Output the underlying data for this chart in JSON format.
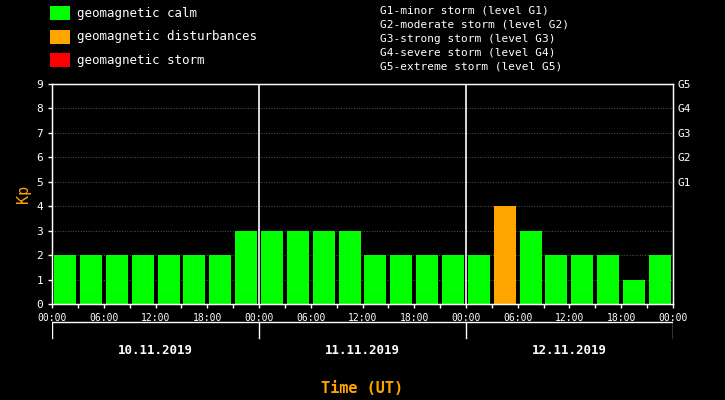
{
  "bg_color": "#000000",
  "plot_bg_color": "#000000",
  "bar_values": [
    2,
    2,
    2,
    2,
    2,
    2,
    2,
    3,
    3,
    3,
    3,
    3,
    2,
    2,
    2,
    2,
    2,
    4,
    3,
    2,
    2,
    2,
    1,
    2
  ],
  "bar_colors": [
    "#00ff00",
    "#00ff00",
    "#00ff00",
    "#00ff00",
    "#00ff00",
    "#00ff00",
    "#00ff00",
    "#00ff00",
    "#00ff00",
    "#00ff00",
    "#00ff00",
    "#00ff00",
    "#00ff00",
    "#00ff00",
    "#00ff00",
    "#00ff00",
    "#00ff00",
    "#ffa500",
    "#00ff00",
    "#00ff00",
    "#00ff00",
    "#00ff00",
    "#00ff00",
    "#00ff00"
  ],
  "ylim": [
    0,
    9
  ],
  "yticks": [
    0,
    1,
    2,
    3,
    4,
    5,
    6,
    7,
    8,
    9
  ],
  "ylabel": "Kp",
  "ylabel_color": "#ffa500",
  "xlabel": "Time (UT)",
  "xlabel_color": "#ffa500",
  "tick_color": "#ffffff",
  "spine_color": "#ffffff",
  "day_labels": [
    "10.11.2019",
    "11.11.2019",
    "12.11.2019"
  ],
  "day_divider_bars": [
    8,
    16
  ],
  "right_labels": [
    "G5",
    "G4",
    "G3",
    "G2",
    "G1"
  ],
  "right_label_yticks": [
    9,
    8,
    7,
    6,
    5
  ],
  "right_label_color": "#ffffff",
  "legend_items": [
    {
      "label": "geomagnetic calm",
      "color": "#00ff00"
    },
    {
      "label": "geomagnetic disturbances",
      "color": "#ffa500"
    },
    {
      "label": "geomagnetic storm",
      "color": "#ff0000"
    }
  ],
  "legend_text_color": "#ffffff",
  "g_labels_text": [
    "G1-minor storm (level G1)",
    "G2-moderate storm (level G2)",
    "G3-strong storm (level G3)",
    "G4-severe storm (level G4)",
    "G5-extreme storm (level G5)"
  ],
  "g_labels_color": "#ffffff",
  "hour_ticks": [
    "00:00",
    "06:00",
    "12:00",
    "18:00",
    "00:00",
    "06:00",
    "12:00",
    "18:00",
    "00:00",
    "06:00",
    "12:00",
    "18:00",
    "00:00"
  ],
  "hour_tick_bar_indices": [
    0,
    2,
    4,
    6,
    8,
    10,
    12,
    14,
    16,
    18,
    20,
    22,
    24
  ],
  "grid_dot_color": "#555555",
  "dot_linewidth": 0.7,
  "bar_width": 0.85
}
